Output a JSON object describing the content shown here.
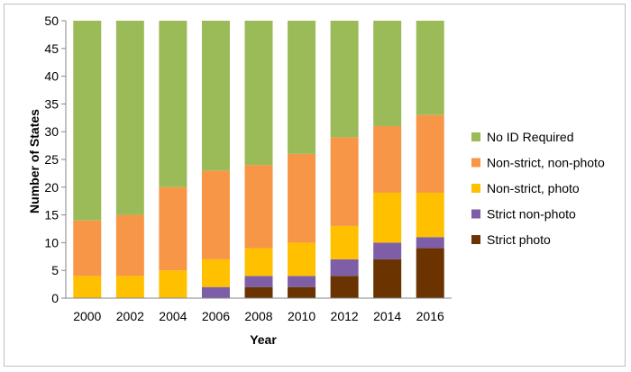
{
  "chart_data": {
    "type": "bar",
    "stacked": true,
    "categories": [
      "2000",
      "2002",
      "2004",
      "2006",
      "2008",
      "2010",
      "2012",
      "2014",
      "2016"
    ],
    "xlabel": "Year",
    "ylabel": "Number of States",
    "ylim": [
      0,
      50
    ],
    "yticks": [
      0,
      5,
      10,
      15,
      20,
      25,
      30,
      35,
      40,
      45,
      50
    ],
    "grid": false,
    "legend_position": "right",
    "series": [
      {
        "name": "Strict photo",
        "color": "#6b3300",
        "values": [
          0,
          0,
          0,
          0,
          2,
          2,
          4,
          7,
          9
        ]
      },
      {
        "name": "Strict non-photo",
        "color": "#7e5ea6",
        "values": [
          0,
          0,
          0,
          2,
          2,
          2,
          3,
          3,
          2
        ]
      },
      {
        "name": "Non-strict, photo",
        "color": "#ffc000",
        "values": [
          4,
          4,
          5,
          5,
          5,
          6,
          6,
          9,
          8
        ]
      },
      {
        "name": "Non-strict, non-photo",
        "color": "#f79646",
        "values": [
          10,
          11,
          15,
          16,
          15,
          16,
          16,
          12,
          14
        ]
      },
      {
        "name": "No ID Required",
        "color": "#9bbb59",
        "values": [
          36,
          35,
          30,
          27,
          26,
          24,
          21,
          19,
          17
        ]
      }
    ],
    "legend_order": [
      "No ID Required",
      "Non-strict, non-photo",
      "Non-strict, photo",
      "Strict non-photo",
      "Strict photo"
    ]
  }
}
